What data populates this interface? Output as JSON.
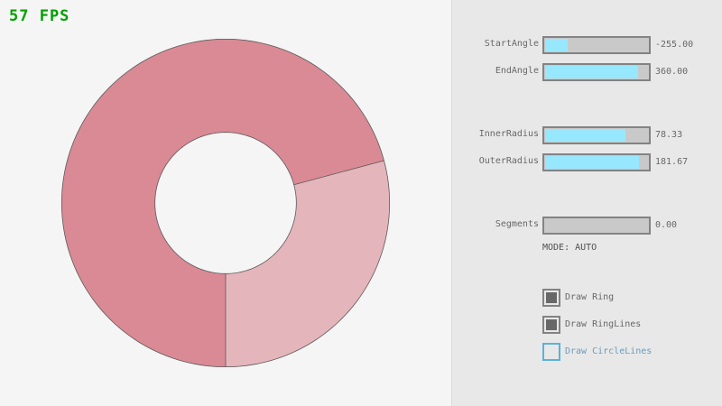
{
  "fps": "57 FPS",
  "ring": {
    "start_angle": -255,
    "end_angle": 360,
    "inner_radius": 78.33,
    "outer_radius": 181.67,
    "fill_color": "#e5b5bc",
    "overlap_color": "#da8a94",
    "line_color": "#5a5a5a"
  },
  "sliders": [
    {
      "label": "StartAngle",
      "value": "-255.00",
      "fraction": 0.217
    },
    {
      "label": "EndAngle",
      "value": "360.00",
      "fraction": 0.9
    },
    {
      "label": "InnerRadius",
      "value": "78.33",
      "fraction": 0.783
    },
    {
      "label": "OuterRadius",
      "value": "181.67",
      "fraction": 0.908
    },
    {
      "label": "Segments",
      "value": "0.00",
      "fraction": 0
    }
  ],
  "mode": "MODE: AUTO",
  "checkboxes": [
    {
      "label": "Draw Ring",
      "checked": true
    },
    {
      "label": "Draw RingLines",
      "checked": true
    },
    {
      "label": "Draw CircleLines",
      "checked": false
    }
  ]
}
